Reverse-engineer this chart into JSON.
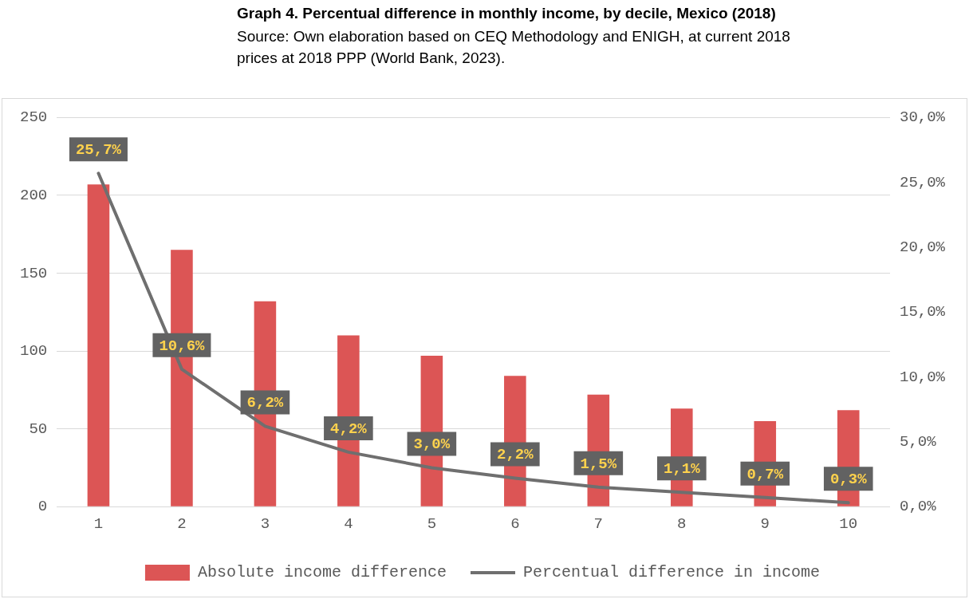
{
  "chart_data": {
    "type": "bar",
    "title": "Graph 4. Percentual difference in monthly income, by decile, Mexico (2018)",
    "subtitle": "Source: Own elaboration based on CEQ Methodology and ENIGH,  at current 2018 prices at 2018 PPP (World Bank, 2023).",
    "categories": [
      "1",
      "2",
      "3",
      "4",
      "5",
      "6",
      "7",
      "8",
      "9",
      "10"
    ],
    "series": [
      {
        "name": "Absolute income difference",
        "type": "bar",
        "color": "#dc5555",
        "values": [
          207,
          165,
          132,
          110,
          97,
          84,
          72,
          63,
          55,
          62
        ]
      },
      {
        "name": "Percentual difference in income",
        "type": "line",
        "axis": "y2",
        "color": "#6f6f6f",
        "values": [
          25.7,
          10.6,
          6.2,
          4.2,
          3.0,
          2.2,
          1.5,
          1.1,
          0.7,
          0.3
        ],
        "value_labels": [
          "25,7%",
          "10,6%",
          "6,2%",
          "4,2%",
          "3,0%",
          "2,2%",
          "1,5%",
          "1,1%",
          "0,7%",
          "0,3%"
        ]
      }
    ],
    "ylim": [
      0,
      250
    ],
    "yticks": [
      0,
      50,
      100,
      150,
      200,
      250
    ],
    "y2lim": [
      0,
      30
    ],
    "y2ticks": [
      {
        "value": 0,
        "label": "0,0%"
      },
      {
        "value": 5,
        "label": "5,0%"
      },
      {
        "value": 10,
        "label": "10,0%"
      },
      {
        "value": 15,
        "label": "15,0%"
      },
      {
        "value": 20,
        "label": "20,0%"
      },
      {
        "value": 25,
        "label": "25,0%"
      },
      {
        "value": 30,
        "label": "30,0%"
      }
    ],
    "grid": "y",
    "legend": "bottom",
    "marker": "none",
    "line_style": "solid"
  }
}
